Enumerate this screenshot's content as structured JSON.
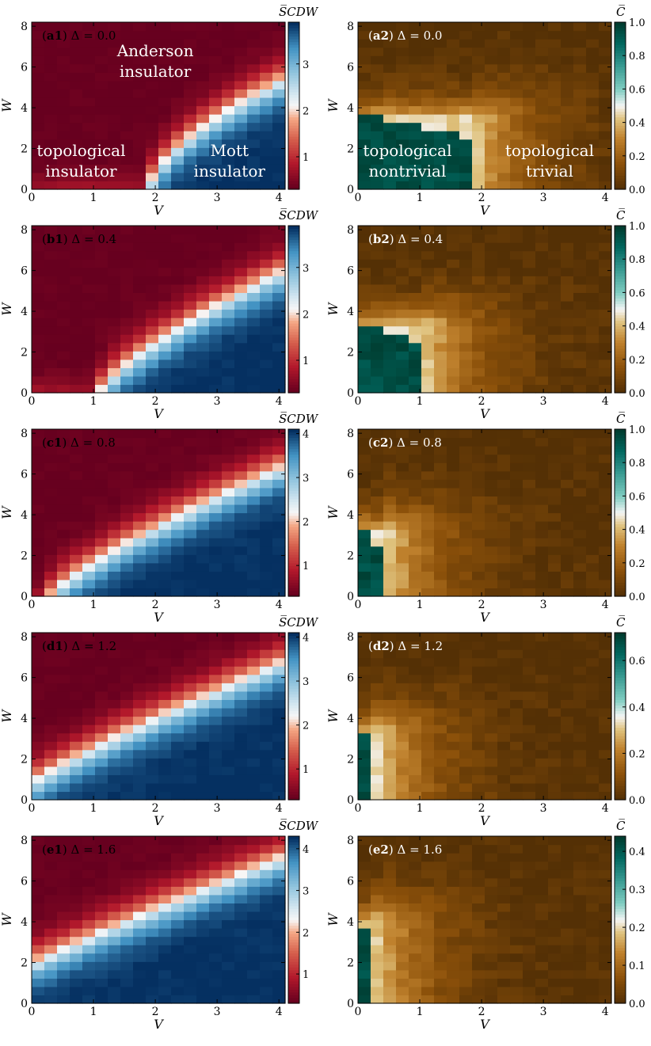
{
  "figure": {
    "left_colorbar_symbol": "S̅CDW",
    "right_colorbar_symbol": "C̅"
  },
  "chart_data": [
    {
      "id": "a1",
      "type": "heatmap",
      "panel_label": "a1",
      "delta_text": "Δ = 0.0",
      "delta": 0.0,
      "xlabel": "V",
      "ylabel": "W",
      "xlim": [
        0,
        4.1
      ],
      "ylim": [
        0,
        8.2
      ],
      "xticks": [
        0,
        1,
        2,
        3,
        4
      ],
      "yticks": [
        0,
        2,
        4,
        6,
        8
      ],
      "colormap": "RdBu",
      "colorbar": {
        "label": "S_CDW",
        "min": 0.3,
        "max": 3.9,
        "ticks": [
          1,
          2,
          3
        ]
      },
      "boundary": {
        "v0": 1.9,
        "w_at_v4": 5.3,
        "p": 0.62
      },
      "annotations": [
        {
          "text": "Anderson",
          "V": 2.0,
          "W": 6.8
        },
        {
          "text": "insulator",
          "V": 2.0,
          "W": 5.8
        },
        {
          "text": "topological",
          "V": 0.8,
          "W": 1.9
        },
        {
          "text": "insulator",
          "V": 0.8,
          "W": 0.9
        },
        {
          "text": "Mott",
          "V": 3.2,
          "W": 1.9
        },
        {
          "text": "insulator",
          "V": 3.2,
          "W": 0.9
        }
      ]
    },
    {
      "id": "a2",
      "type": "heatmap",
      "panel_label": "a2",
      "delta_text": "Δ = 0.0",
      "delta": 0.0,
      "xlabel": "V",
      "ylabel": "W",
      "xlim": [
        0,
        4.1
      ],
      "ylim": [
        0,
        8.2
      ],
      "xticks": [
        0,
        1,
        2,
        3,
        4
      ],
      "yticks": [
        0,
        2,
        4,
        6,
        8
      ],
      "colormap": "BrBG",
      "colorbar": {
        "label": "C",
        "min": 0.0,
        "max": 1.0,
        "ticks": [
          0.0,
          0.2,
          0.4,
          0.6,
          0.8,
          1.0
        ]
      },
      "topo_region": {
        "v_edge": 1.85,
        "w_top": 3.5
      },
      "annotations": [
        {
          "text": "topological",
          "V": 0.8,
          "W": 1.9
        },
        {
          "text": "nontrivial",
          "V": 0.8,
          "W": 0.9
        },
        {
          "text": "topological",
          "V": 3.1,
          "W": 1.9
        },
        {
          "text": "trivial",
          "V": 3.1,
          "W": 0.9
        }
      ]
    },
    {
      "id": "b1",
      "type": "heatmap",
      "panel_label": "b1",
      "delta_text": "Δ = 0.4",
      "delta": 0.4,
      "xlabel": "V",
      "ylabel": "W",
      "xlim": [
        0,
        4.1
      ],
      "ylim": [
        0,
        8.2
      ],
      "xticks": [
        0,
        1,
        2,
        3,
        4
      ],
      "yticks": [
        0,
        2,
        4,
        6,
        8
      ],
      "colormap": "RdBu",
      "colorbar": {
        "label": "S_CDW",
        "min": 0.3,
        "max": 3.9,
        "ticks": [
          1,
          2,
          3
        ]
      },
      "boundary": {
        "v0": 1.1,
        "w_at_v4": 5.9,
        "p": 0.75
      },
      "annotations": []
    },
    {
      "id": "b2",
      "type": "heatmap",
      "panel_label": "b2",
      "delta_text": "Δ = 0.4",
      "delta": 0.4,
      "xlabel": "V",
      "ylabel": "W",
      "xlim": [
        0,
        4.1
      ],
      "ylim": [
        0,
        8.2
      ],
      "xticks": [
        0,
        1,
        2,
        3,
        4
      ],
      "yticks": [
        0,
        2,
        4,
        6,
        8
      ],
      "colormap": "BrBG",
      "colorbar": {
        "label": "C",
        "min": 0.0,
        "max": 1.0,
        "ticks": [
          0.0,
          0.2,
          0.4,
          0.6,
          0.8,
          1.0
        ]
      },
      "topo_region": {
        "v_edge": 1.05,
        "w_top": 3.3
      },
      "annotations": []
    },
    {
      "id": "c1",
      "type": "heatmap",
      "panel_label": "c1",
      "delta_text": "Δ = 0.8",
      "delta": 0.8,
      "xlabel": "V",
      "ylabel": "W",
      "xlim": [
        0,
        4.1
      ],
      "ylim": [
        0,
        8.2
      ],
      "xticks": [
        0,
        1,
        2,
        3,
        4
      ],
      "yticks": [
        0,
        2,
        4,
        6,
        8
      ],
      "colormap": "RdBu",
      "colorbar": {
        "label": "S_CDW",
        "min": 0.3,
        "max": 4.1,
        "ticks": [
          1,
          2,
          3,
          4
        ]
      },
      "boundary": {
        "v0": 0.3,
        "w_at_v4": 6.3,
        "p": 0.8
      },
      "annotations": []
    },
    {
      "id": "c2",
      "type": "heatmap",
      "panel_label": "c2",
      "delta_text": "Δ = 0.8",
      "delta": 0.8,
      "xlabel": "V",
      "ylabel": "W",
      "xlim": [
        0,
        4.1
      ],
      "ylim": [
        0,
        8.2
      ],
      "xticks": [
        0,
        1,
        2,
        3,
        4
      ],
      "yticks": [
        0,
        2,
        4,
        6,
        8
      ],
      "colormap": "BrBG",
      "colorbar": {
        "label": "C",
        "min": 0.0,
        "max": 1.0,
        "ticks": [
          0.0,
          0.2,
          0.4,
          0.6,
          0.8,
          1.0
        ]
      },
      "topo_region": {
        "v_edge": 0.45,
        "w_top": 3.2
      },
      "annotations": []
    },
    {
      "id": "d1",
      "type": "heatmap",
      "panel_label": "d1",
      "delta_text": "Δ = 1.2",
      "delta": 1.2,
      "xlabel": "V",
      "ylabel": "W",
      "xlim": [
        0,
        4.1
      ],
      "ylim": [
        0,
        8.2
      ],
      "xticks": [
        0,
        1,
        2,
        3,
        4
      ],
      "yticks": [
        0,
        2,
        4,
        6,
        8
      ],
      "colormap": "RdBu",
      "colorbar": {
        "label": "S_CDW",
        "min": 0.3,
        "max": 4.1,
        "ticks": [
          1,
          2,
          3,
          4
        ]
      },
      "boundary": {
        "v0": -0.4,
        "w_at_v4": 6.7,
        "p": 0.85
      },
      "annotations": []
    },
    {
      "id": "d2",
      "type": "heatmap",
      "panel_label": "d2",
      "delta_text": "Δ = 1.2",
      "delta": 1.2,
      "xlabel": "V",
      "ylabel": "W",
      "xlim": [
        0,
        4.1
      ],
      "ylim": [
        0,
        8.2
      ],
      "xticks": [
        0,
        1,
        2,
        3,
        4
      ],
      "yticks": [
        0,
        2,
        4,
        6,
        8
      ],
      "colormap": "BrBG",
      "colorbar": {
        "label": "C",
        "min": 0.0,
        "max": 0.72,
        "ticks": [
          0.0,
          0.2,
          0.4,
          0.6
        ]
      },
      "topo_region": {
        "v_edge": 0.3,
        "w_top": 3.3
      },
      "annotations": []
    },
    {
      "id": "e1",
      "type": "heatmap",
      "panel_label": "e1",
      "delta_text": "Δ = 1.6",
      "delta": 1.6,
      "xlabel": "V",
      "ylabel": "W",
      "xlim": [
        0,
        4.1
      ],
      "ylim": [
        0,
        8.2
      ],
      "xticks": [
        0,
        1,
        2,
        3,
        4
      ],
      "yticks": [
        0,
        2,
        4,
        6,
        8
      ],
      "colormap": "RdBu",
      "colorbar": {
        "label": "S_CDW",
        "min": 0.3,
        "max": 4.3,
        "ticks": [
          1,
          2,
          3,
          4
        ]
      },
      "boundary": {
        "v0": -1.2,
        "w_at_v4": 7.1,
        "p": 0.88
      },
      "annotations": []
    },
    {
      "id": "e2",
      "type": "heatmap",
      "panel_label": "e2",
      "delta_text": "Δ = 1.6",
      "delta": 1.6,
      "xlabel": "V",
      "ylabel": "W",
      "xlim": [
        0,
        4.1
      ],
      "ylim": [
        0,
        8.2
      ],
      "xticks": [
        0,
        1,
        2,
        3,
        4
      ],
      "yticks": [
        0,
        2,
        4,
        6,
        8
      ],
      "colormap": "BrBG",
      "colorbar": {
        "label": "C",
        "min": 0.0,
        "max": 0.44,
        "ticks": [
          0.0,
          0.1,
          0.2,
          0.3,
          0.4
        ]
      },
      "topo_region": {
        "v_edge": 0.25,
        "w_top": 4.0
      },
      "annotations": []
    }
  ]
}
